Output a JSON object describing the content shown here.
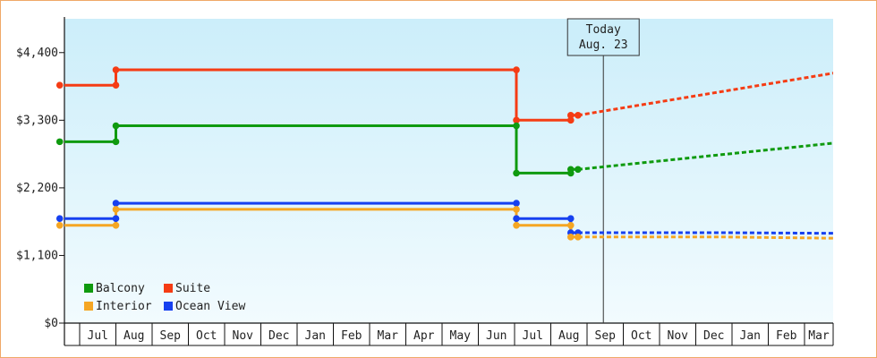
{
  "chart_data": {
    "type": "line",
    "title": "",
    "xlabel": "",
    "ylabel": "",
    "ylim": [
      0,
      4950
    ],
    "y_ticks": [
      0,
      1100,
      2200,
      3300,
      4400
    ],
    "y_tick_labels": [
      "$0",
      "$1,100",
      "$2,200",
      "$3,300",
      "$4,400"
    ],
    "months": [
      "Jul",
      "Aug",
      "Sep",
      "Oct",
      "Nov",
      "Dec",
      "Jan",
      "Feb",
      "Mar",
      "Apr",
      "May",
      "Jun",
      "Jul",
      "Aug",
      "Sep",
      "Oct",
      "Nov",
      "Dec",
      "Jan",
      "Feb",
      "Mar"
    ],
    "background_gradient": [
      "#cceefa",
      "#f2fbfe"
    ],
    "today": {
      "line1": "Today",
      "line2": "Aug. 23",
      "x": 14.45
    },
    "legend": {
      "placement": "bottom-left"
    },
    "series": [
      {
        "name": "Suite",
        "color": "#f53c14",
        "points": [
          [
            -0.55,
            3870
          ],
          [
            1,
            3870
          ],
          [
            1,
            4120
          ],
          [
            12.05,
            4120
          ],
          [
            12.05,
            3300
          ],
          [
            13.55,
            3300
          ],
          [
            13.55,
            3380
          ],
          [
            13.75,
            3380
          ]
        ],
        "markers": [
          [
            -0.55,
            3870
          ],
          [
            1,
            3870
          ],
          [
            1,
            4120
          ],
          [
            12.05,
            4120
          ],
          [
            12.05,
            3300
          ],
          [
            13.55,
            3300
          ],
          [
            13.55,
            3380
          ],
          [
            13.75,
            3380
          ]
        ],
        "forecast": [
          [
            13.75,
            3380
          ],
          [
            20.85,
            4070
          ]
        ]
      },
      {
        "name": "Balcony",
        "color": "#0f9a0f",
        "points": [
          [
            -0.55,
            2950
          ],
          [
            1,
            2950
          ],
          [
            1,
            3210
          ],
          [
            12.05,
            3210
          ],
          [
            12.05,
            2440
          ],
          [
            13.55,
            2440
          ],
          [
            13.55,
            2500
          ],
          [
            13.75,
            2500
          ]
        ],
        "markers": [
          [
            -0.55,
            2950
          ],
          [
            1,
            2950
          ],
          [
            1,
            3210
          ],
          [
            12.05,
            3210
          ],
          [
            12.05,
            2440
          ],
          [
            13.55,
            2440
          ],
          [
            13.55,
            2500
          ],
          [
            13.75,
            2500
          ]
        ],
        "forecast": [
          [
            13.75,
            2500
          ],
          [
            20.85,
            2930
          ]
        ]
      },
      {
        "name": "Ocean View",
        "color": "#1640f0",
        "points": [
          [
            -0.55,
            1700
          ],
          [
            1,
            1700
          ],
          [
            1,
            1950
          ],
          [
            12.05,
            1950
          ],
          [
            12.05,
            1700
          ],
          [
            13.55,
            1700
          ],
          [
            13.55,
            1470
          ],
          [
            13.75,
            1470
          ]
        ],
        "markers": [
          [
            -0.55,
            1700
          ],
          [
            1,
            1700
          ],
          [
            1,
            1950
          ],
          [
            12.05,
            1950
          ],
          [
            12.05,
            1700
          ],
          [
            13.55,
            1700
          ],
          [
            13.55,
            1470
          ],
          [
            13.75,
            1470
          ]
        ],
        "forecast": [
          [
            13.75,
            1470
          ],
          [
            17.8,
            1470
          ],
          [
            20.85,
            1460
          ]
        ]
      },
      {
        "name": "Interior",
        "color": "#f5a623",
        "points": [
          [
            -0.55,
            1590
          ],
          [
            1,
            1590
          ],
          [
            1,
            1850
          ],
          [
            12.05,
            1850
          ],
          [
            12.05,
            1590
          ],
          [
            13.55,
            1590
          ],
          [
            13.55,
            1400
          ],
          [
            13.75,
            1400
          ]
        ],
        "markers": [
          [
            -0.55,
            1590
          ],
          [
            1,
            1590
          ],
          [
            1,
            1850
          ],
          [
            12.05,
            1850
          ],
          [
            12.05,
            1590
          ],
          [
            13.55,
            1590
          ],
          [
            13.55,
            1400
          ],
          [
            13.75,
            1400
          ]
        ],
        "forecast": [
          [
            13.75,
            1400
          ],
          [
            17.8,
            1400
          ],
          [
            20.85,
            1380
          ]
        ]
      }
    ],
    "legend_order": [
      "Balcony",
      "Suite",
      "Interior",
      "Ocean View"
    ]
  }
}
